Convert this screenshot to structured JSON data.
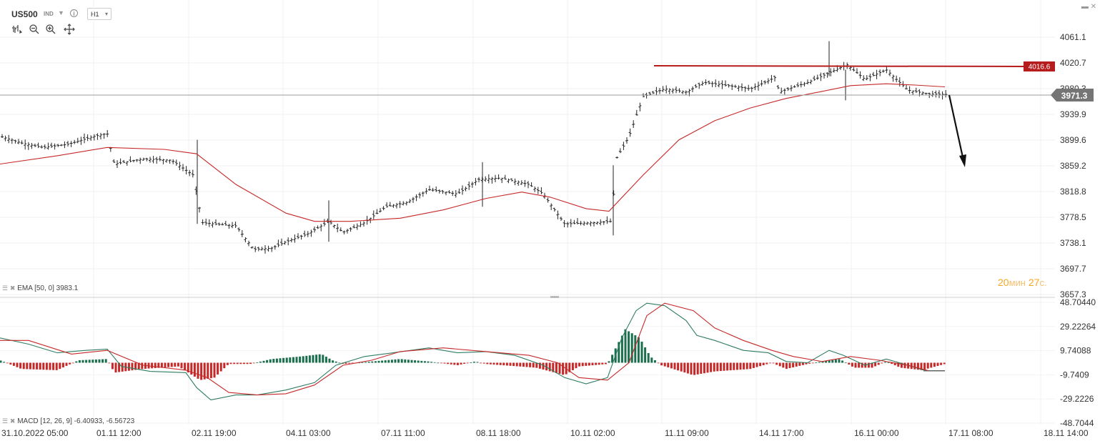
{
  "toolbar": {
    "symbol": "US500",
    "type": "IND",
    "timeframe": "H1",
    "tools": [
      "bars-icon",
      "zoom-out-icon",
      "zoom-in-icon",
      "crosshair-icon"
    ]
  },
  "price_axis": {
    "labels": [
      "4061.1",
      "4020.7",
      "3980.3",
      "3939.9",
      "3899.6",
      "3859.2",
      "3818.8",
      "3778.5",
      "3738.1",
      "3697.7",
      "3657.3"
    ]
  },
  "macd_axis": {
    "labels": [
      "48.70440",
      "29.22264",
      "9.74088",
      "-9.7409",
      "-29.2226",
      "-48.7044"
    ]
  },
  "time_axis": {
    "labels": [
      "31.10.2022 05:00",
      "01.11 12:00",
      "02.11 19:00",
      "04.11 03:00",
      "07.11 11:00",
      "08.11 18:00",
      "10.11 02:00",
      "11.11 09:00",
      "14.11 17:00",
      "16.11 00:00",
      "17.11 08:00",
      "18.11 14:00"
    ]
  },
  "current_price": "3971.3",
  "level_price": "4016.6",
  "ema_label": "EMA [50, 0] 3983.1",
  "macd_label": "MACD [12, 26, 9] -6.40933, -6.56723",
  "timer": {
    "minutes": "20",
    "min_unit": "мин",
    "seconds": "27",
    "sec_unit": "с."
  },
  "colors": {
    "ema": "#c62828",
    "level": "#b71c1c",
    "macd_up": "#1b6e4e",
    "macd_down": "#c62828",
    "price_label_bg": "#757575"
  },
  "chart_data": [
    {
      "type": "ohlc",
      "ylim": [
        3657.3,
        4061.1
      ],
      "x": [
        "31.10.2022 05:00",
        "01.11 12:00",
        "02.11 19:00",
        "04.11 03:00",
        "07.11 11:00",
        "08.11 18:00",
        "10.11 02:00",
        "11.11 09:00",
        "14.11 17:00",
        "16.11 00:00",
        "17.11 08:00"
      ],
      "close_approx": [
        3905,
        3862,
        3770,
        3728,
        3785,
        3818,
        3770,
        3980,
        3985,
        4000,
        3971.3
      ],
      "series": [
        {
          "name": "EMA [50, 0]",
          "last": 3983.1
        }
      ],
      "horizontal_level": 4016.6,
      "last_price": 3971.3
    },
    {
      "type": "macd",
      "ylim": [
        -48.7044,
        48.7044
      ],
      "series": [
        {
          "name": "MACD [12, 26, 9]",
          "macd": -6.40933,
          "signal": -6.56723
        }
      ]
    }
  ]
}
